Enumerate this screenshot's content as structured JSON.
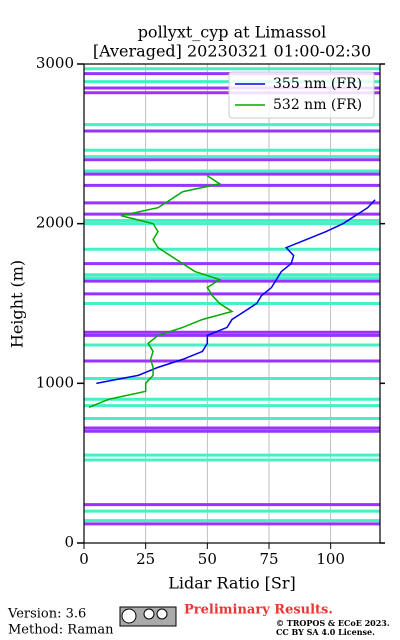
{
  "chart_data": {
    "type": "line",
    "title": [
      "pollyxt_cyp at Limassol",
      "[Averaged] 20230321 01:00-02:30"
    ],
    "x_label": "Lidar Ratio [Sr]",
    "y_label": "Height (m)",
    "xlim": [
      0,
      120
    ],
    "xticks": [
      0,
      25,
      50,
      75,
      100
    ],
    "ylim": [
      0,
      3000
    ],
    "yticks": [
      0,
      1000,
      2000,
      3000
    ],
    "grid": true,
    "legend": "upper right",
    "y": [
      850,
      900,
      950,
      1000,
      1050,
      1100,
      1150,
      1200,
      1250,
      1300,
      1350,
      1400,
      1450,
      1500,
      1550,
      1600,
      1650,
      1700,
      1750,
      1800,
      1850,
      1900,
      1950,
      2000,
      2050,
      2100,
      2150,
      2200,
      2250,
      2300
    ],
    "series": [
      {
        "name": "355 nm (FR)",
        "color": "#0000ee",
        "values": [
          null,
          null,
          null,
          5,
          22,
          30,
          40,
          48,
          50,
          50,
          58,
          60,
          65,
          70,
          72,
          76,
          78,
          80,
          84,
          85,
          82,
          90,
          98,
          105,
          110,
          115,
          118,
          null,
          null,
          null
        ]
      },
      {
        "name": "532 nm (FR)",
        "color": "#00aa00",
        "values": [
          2,
          10,
          25,
          25,
          28,
          28,
          27,
          28,
          26,
          30,
          40,
          48,
          60,
          55,
          52,
          50,
          55,
          45,
          40,
          35,
          30,
          28,
          30,
          28,
          15,
          30,
          35,
          40,
          55,
          50
        ]
      }
    ],
    "bands": [
      {
        "color": "#9933ff",
        "heights": [
          120,
          240,
          700,
          720,
          1140,
          1300,
          1320,
          1560,
          1640,
          1750,
          2060,
          2130,
          2240,
          2310,
          2400,
          2580,
          2820,
          2850,
          2940
        ]
      },
      {
        "color": "#44f0c4",
        "heights": [
          140,
          200,
          520,
          550,
          780,
          860,
          900,
          1030,
          1240,
          1500,
          1660,
          1680,
          1840,
          2000,
          2020,
          2330,
          2420,
          2460,
          2620,
          2890,
          2970
        ]
      }
    ]
  },
  "footer": {
    "version": "Version: 3.6",
    "method": "Method: Raman",
    "notice": "Preliminary Results.",
    "copyright": "© TROPOS & ECoE 2023.",
    "license": "CC BY SA 4.0 License."
  }
}
